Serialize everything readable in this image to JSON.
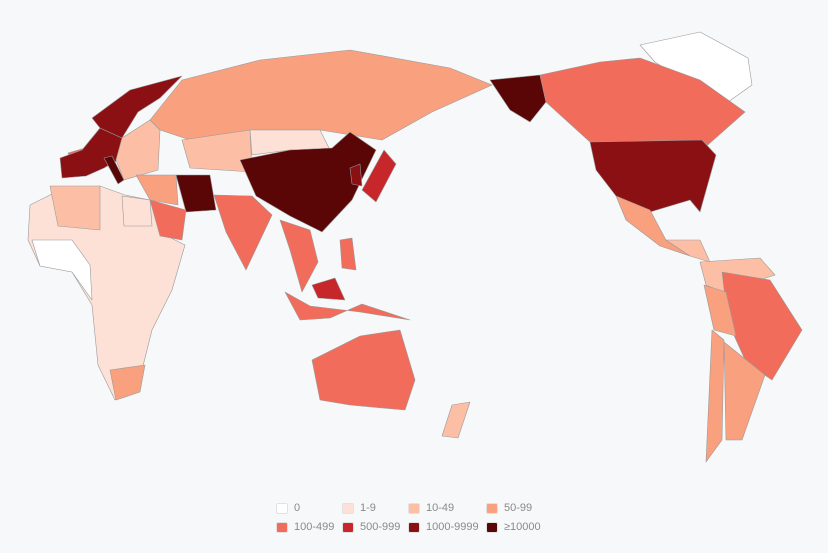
{
  "legend": {
    "bins": [
      {
        "label": "0",
        "color": "#ffffff"
      },
      {
        "label": "1-9",
        "color": "#fde0d6"
      },
      {
        "label": "10-49",
        "color": "#fcbfa6"
      },
      {
        "label": "50-99",
        "color": "#f9a07f"
      },
      {
        "label": "100-499",
        "color": "#f26c5b"
      },
      {
        "label": "500-999",
        "color": "#c7272b"
      },
      {
        "label": "1000-9999",
        "color": "#8b1013"
      },
      {
        "label": "≥10000",
        "color": "#5a0606"
      }
    ]
  },
  "background": "#f7f8fa",
  "regions": {
    "greenland": 0,
    "africa": 1,
    "north-africa": 2,
    "west-africa": 0,
    "egypt": 1,
    "south-africa": 3,
    "western-europe": 6,
    "italy": 7,
    "scandinavia": 6,
    "eastern-europe": 2,
    "iceland": 4,
    "russia": 3,
    "central-asia": 2,
    "china": 7,
    "mongolia": 1,
    "iran": 7,
    "arabia": 4,
    "middle-east": 3,
    "india": 4,
    "japan": 5,
    "korea": 6,
    "southeast-asia": 4,
    "malaysia": 5,
    "indonesia": 4,
    "philippines": 4,
    "australia": 4,
    "new-zealand": 2,
    "alaska": 7,
    "canada": 4,
    "usa": 6,
    "mexico": 3,
    "central-america": 2,
    "northern-south-america": 2,
    "brazil": 4,
    "peru": 3,
    "chile": 3,
    "argentina": 3
  }
}
